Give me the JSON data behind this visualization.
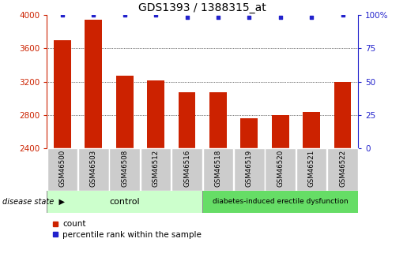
{
  "title": "GDS1393 / 1388315_at",
  "samples": [
    "GSM46500",
    "GSM46503",
    "GSM46508",
    "GSM46512",
    "GSM46516",
    "GSM46518",
    "GSM46519",
    "GSM46520",
    "GSM46521",
    "GSM46522"
  ],
  "counts": [
    3700,
    3940,
    3270,
    3210,
    3070,
    3075,
    2760,
    2800,
    2840,
    3200
  ],
  "percentile_ranks": [
    100,
    100,
    100,
    100,
    98,
    98,
    98,
    98,
    98,
    100
  ],
  "y_min": 2400,
  "y_max": 4000,
  "y_ticks": [
    2400,
    2800,
    3200,
    3600,
    4000
  ],
  "y_right_ticks": [
    0,
    25,
    50,
    75,
    100
  ],
  "bar_color": "#cc2200",
  "dot_color": "#2222cc",
  "control_samples": 5,
  "disease_samples": 5,
  "control_label": "control",
  "disease_label": "diabetes-induced erectile dysfunction",
  "disease_state_label": "disease state",
  "legend_count_label": "count",
  "legend_pct_label": "percentile rank within the sample",
  "control_color": "#ccffcc",
  "disease_color": "#66dd66",
  "tick_bg_color": "#cccccc",
  "title_fontsize": 10,
  "tick_fontsize": 7.5,
  "axis_label_fontsize": 7,
  "disease_label_fontsize": 7
}
